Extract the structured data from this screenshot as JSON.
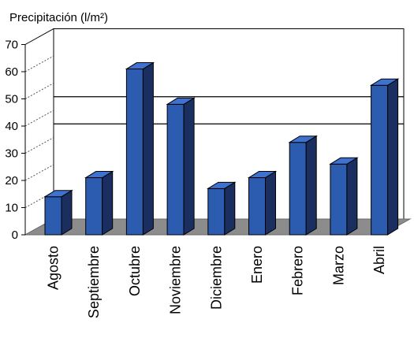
{
  "chart_data": {
    "type": "bar",
    "title": "Precipitación (l/m²)",
    "xlabel": "",
    "ylabel": "",
    "categories": [
      "Agosto",
      "Septiembre",
      "Octubre",
      "Noviembre",
      "Diciembre",
      "Enero",
      "Febrero",
      "Marzo",
      "Abril"
    ],
    "values": [
      14,
      21,
      61,
      48,
      17,
      21,
      34,
      26,
      55
    ],
    "ylim": [
      0,
      70
    ],
    "yticks": [
      0,
      10,
      20,
      30,
      40,
      50,
      60,
      70
    ],
    "reference_lines": [
      35,
      45
    ],
    "bar_style": "3d",
    "colors": {
      "bar_front": "#2b5cb0",
      "bar_side": "#1a2f60",
      "bar_top": "#3f72cf",
      "floor": "#8c8c8c",
      "wall": "#ffffff",
      "grid": "#000000"
    }
  }
}
